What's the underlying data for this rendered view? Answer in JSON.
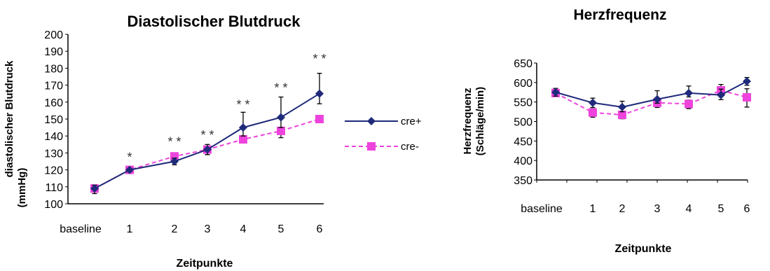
{
  "colors": {
    "cre_plus": "#1f2a7a",
    "cre_minus": "#ee44dd",
    "axis": "#000000",
    "asterisk": "#333333"
  },
  "chart_data": [
    {
      "type": "line",
      "title": "Diastolischer Blutdruck",
      "xlabel": "Zeitpunkte",
      "ylabel": "diastolischer Blutdruck (mmHg)",
      "categories": [
        "baseline",
        "1",
        "2",
        "3",
        "4",
        "5",
        "6"
      ],
      "x": [
        0,
        1,
        2,
        3,
        4,
        5,
        6
      ],
      "ylim": [
        100,
        200
      ],
      "yticks": [
        100,
        110,
        120,
        130,
        140,
        150,
        160,
        170,
        180,
        190,
        200
      ],
      "series": [
        {
          "name": "cre+",
          "marker": "diamond",
          "line": "solid",
          "values": [
            109,
            120,
            125,
            132,
            145,
            151,
            165
          ],
          "err_plus": [
            2,
            1,
            2,
            3,
            9,
            12,
            12
          ],
          "err_minus": [
            3,
            1,
            2,
            3,
            5,
            6,
            6
          ]
        },
        {
          "name": "cre-",
          "marker": "square",
          "line": "dashed",
          "values": [
            109,
            120,
            128,
            132,
            138,
            143,
            150
          ],
          "err_plus": [
            2,
            1,
            1,
            2,
            2,
            2,
            1
          ],
          "err_minus": [
            2,
            1,
            1,
            3,
            2,
            4,
            2
          ]
        }
      ],
      "annotations": [
        {
          "x": 1,
          "y": 125,
          "text": "*"
        },
        {
          "x": 2,
          "y": 134,
          "text": "* *"
        },
        {
          "x": 3,
          "y": 138,
          "text": "* *"
        },
        {
          "x": 4,
          "y": 156,
          "text": "* *"
        },
        {
          "x": 5,
          "y": 166,
          "text": "* *"
        },
        {
          "x": 6,
          "y": 183,
          "text": "* *"
        }
      ],
      "legend": {
        "placement": "right",
        "entries": [
          "cre+",
          "cre-"
        ]
      },
      "grid": false
    },
    {
      "type": "line",
      "title": "Herzfrequenz",
      "xlabel": "Zeitpunkte",
      "ylabel": "Herzfrequenz (Schläge/min)",
      "categories": [
        "baseline",
        "1",
        "2",
        "3",
        "4",
        "5",
        "6"
      ],
      "x": [
        0,
        1,
        2,
        3,
        4,
        5,
        6
      ],
      "ylim": [
        350,
        650
      ],
      "yticks": [
        350,
        400,
        450,
        500,
        550,
        600,
        650
      ],
      "series": [
        {
          "name": "cre+",
          "marker": "diamond",
          "line": "solid",
          "values": [
            575,
            548,
            537,
            557,
            573,
            568,
            603
          ],
          "err_plus": [
            10,
            12,
            15,
            22,
            18,
            15,
            10
          ],
          "err_minus": [
            10,
            12,
            12,
            10,
            10,
            12,
            10
          ]
        },
        {
          "name": "cre-",
          "marker": "square",
          "line": "dashed",
          "values": [
            573,
            523,
            517,
            548,
            545,
            580,
            562
          ],
          "err_plus": [
            8,
            10,
            8,
            10,
            10,
            15,
            22
          ],
          "err_minus": [
            8,
            12,
            10,
            12,
            12,
            10,
            25
          ]
        }
      ],
      "grid": false
    }
  ]
}
